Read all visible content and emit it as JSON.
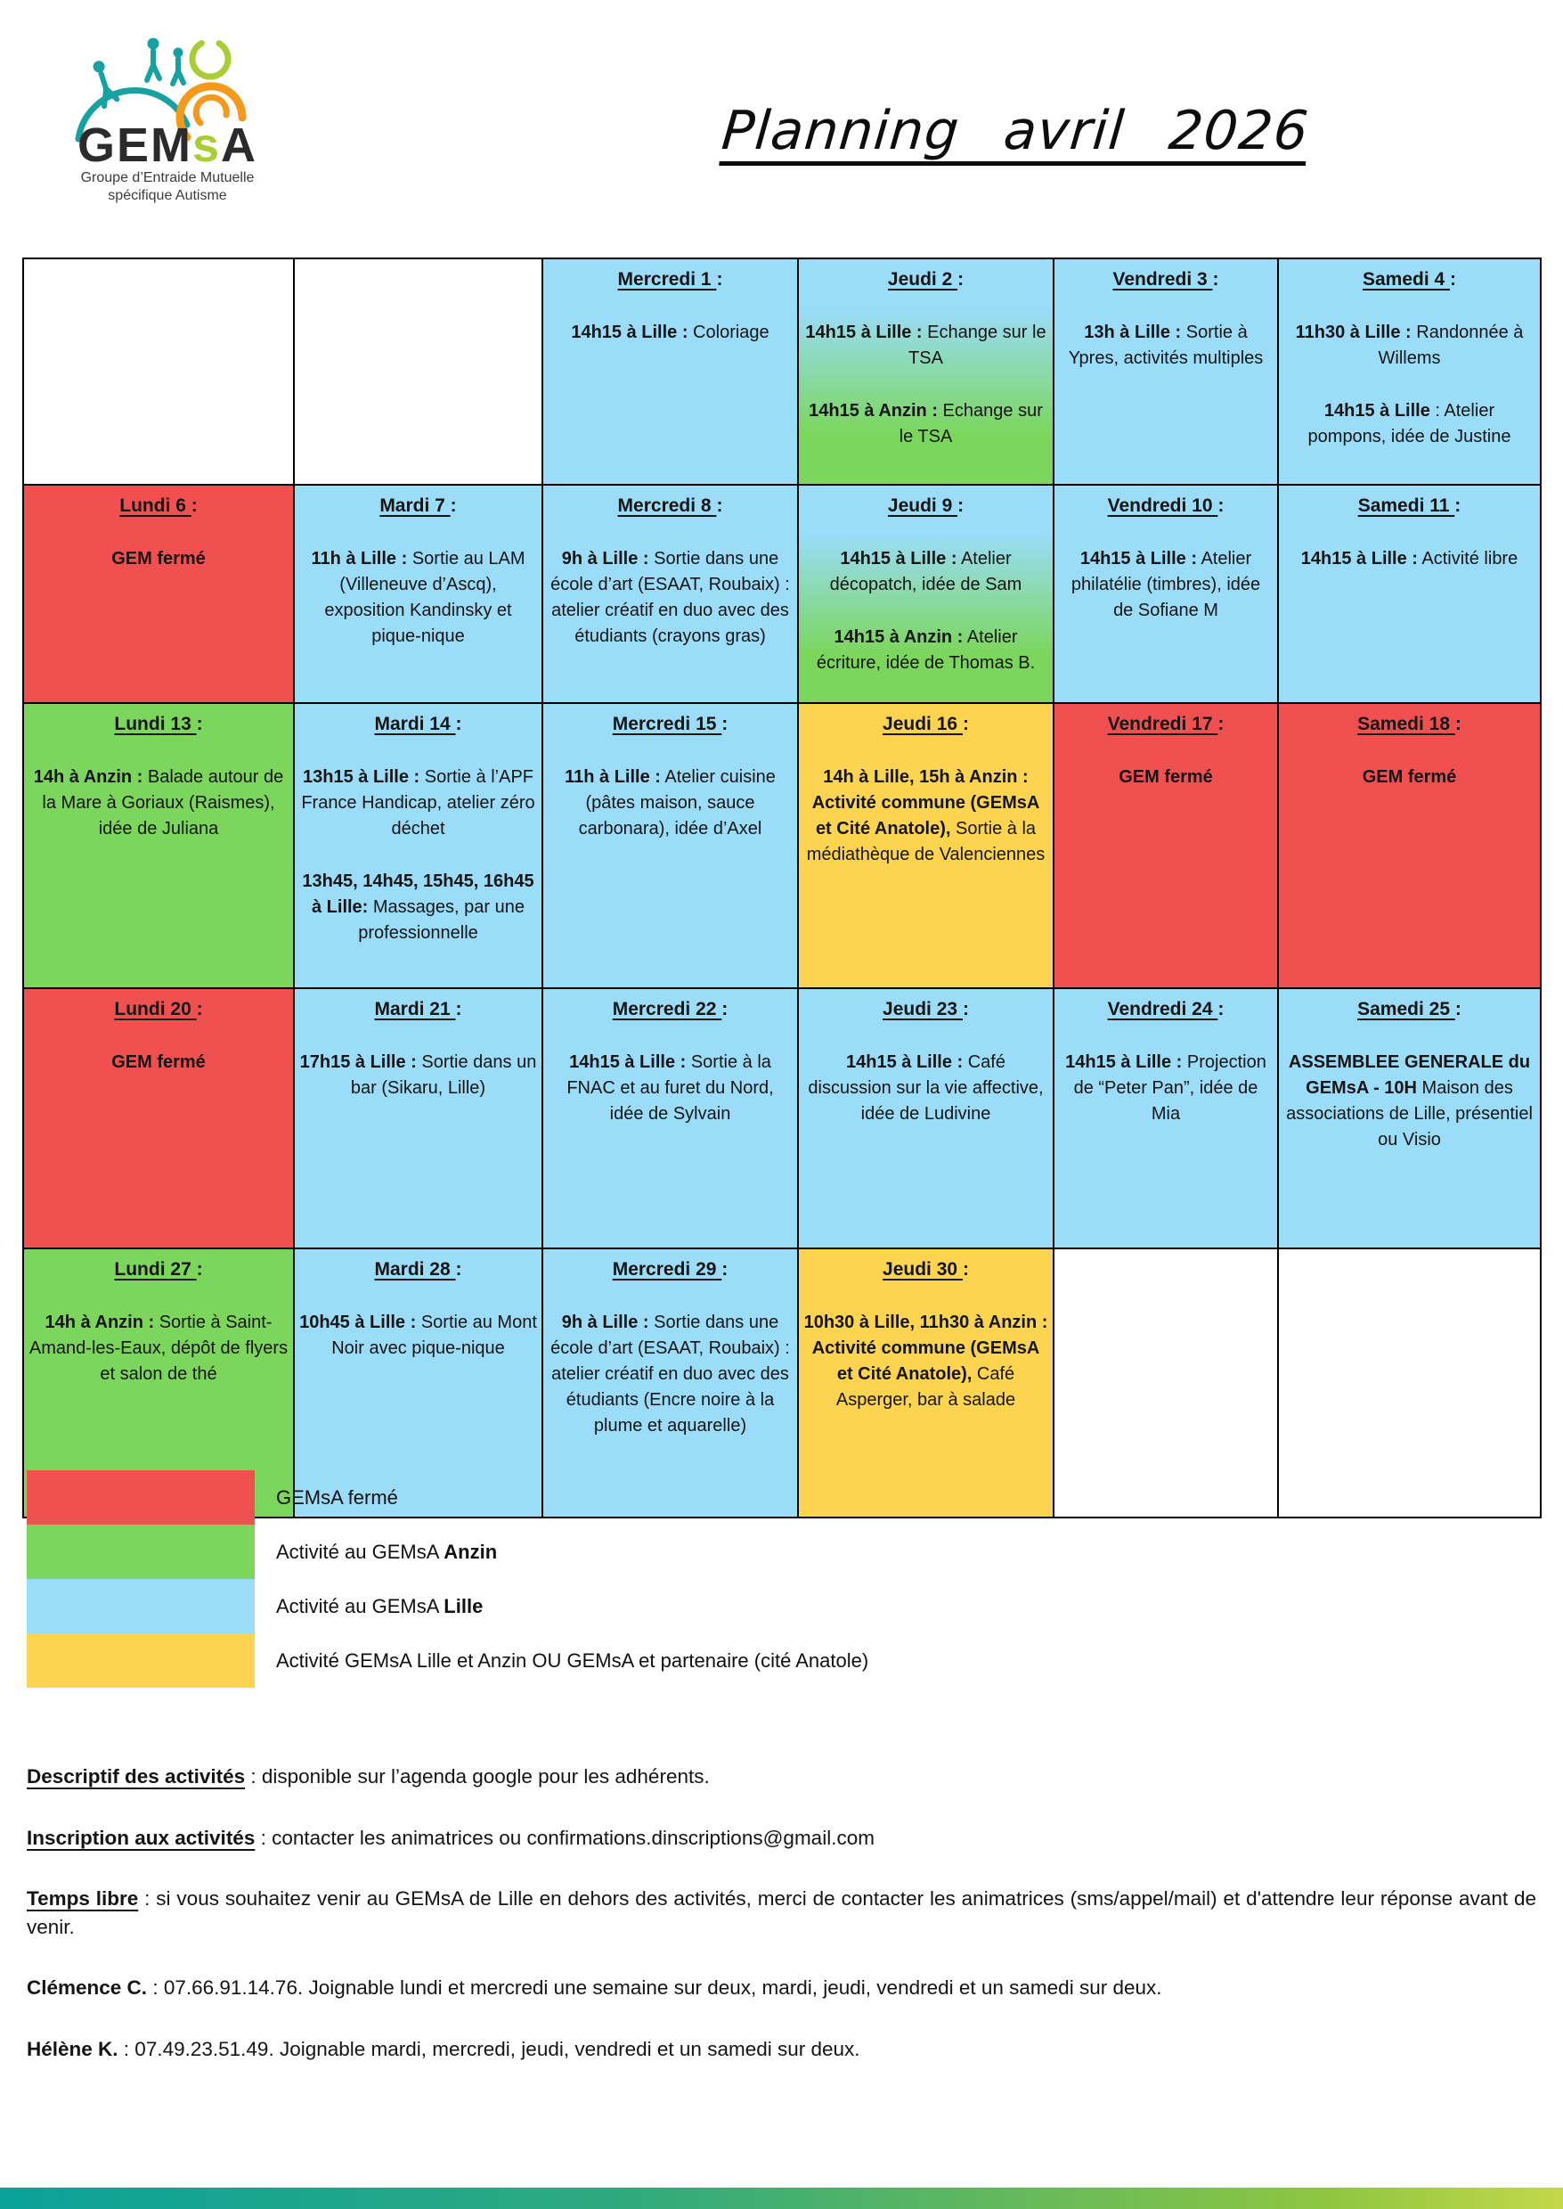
{
  "logo": {
    "acronym_gem": "GEM",
    "acronym_s": "s",
    "acronym_a": "A",
    "subtitle_line1": "Groupe d’Entraide Mutuelle",
    "subtitle_line2": "spécifique Autisme"
  },
  "header": {
    "title": "Planning avril 2026"
  },
  "colors": {
    "closed_red": "#f15050",
    "anzin_green": "#7cd65c",
    "lille_blue": "#9bdcf9",
    "joint_yellow": "#fcd44f",
    "logo_teal": "#18a1a1",
    "logo_green": "#a9cd35",
    "logo_orange": "#f39a1d",
    "bar_teal": "#0ba29a",
    "bar_green": "#8fc640"
  },
  "calendar": {
    "rows": [
      [
        {
          "day": "",
          "color": "white",
          "entries": []
        },
        {
          "day": "",
          "color": "white",
          "entries": []
        },
        {
          "day": "Mercredi 1",
          "color": "blue",
          "entries": [
            {
              "bold": "14h15 à Lille :",
              "text": " Coloriage"
            }
          ]
        },
        {
          "day": "Jeudi 2",
          "color": "gradient",
          "entries": [
            {
              "bold": "14h15 à Lille :",
              "text": " Echange sur le TSA"
            },
            {
              "bold": "14h15 à Anzin :",
              "text": " Echange sur le TSA"
            }
          ]
        },
        {
          "day": "Vendredi 3",
          "color": "blue",
          "entries": [
            {
              "bold": "13h à Lille :",
              "text": " Sortie à Ypres, activités multiples"
            }
          ]
        },
        {
          "day": "Samedi 4",
          "color": "blue",
          "entries": [
            {
              "bold": "11h30 à Lille :",
              "text": " Randonnée à Willems"
            },
            {
              "bold": "14h15 à Lille",
              "text": " : Atelier pompons, idée de Justine"
            }
          ]
        }
      ],
      [
        {
          "day": "Lundi 6",
          "color": "red",
          "entries": [
            {
              "bold": "GEM fermé",
              "text": ""
            }
          ]
        },
        {
          "day": "Mardi 7",
          "color": "blue",
          "entries": [
            {
              "bold": "11h à Lille :",
              "text": " Sortie au LAM (Villeneuve d’Ascq), exposition Kandinsky et pique-nique"
            }
          ]
        },
        {
          "day": "Mercredi 8",
          "color": "blue",
          "entries": [
            {
              "bold": "9h à Lille :",
              "text": " Sortie dans une école d’art (ESAAT, Roubaix) : atelier créatif en duo avec des étudiants (crayons gras)"
            }
          ]
        },
        {
          "day": "Jeudi 9",
          "color": "gradient",
          "entries": [
            {
              "bold": "14h15 à Lille :",
              "text": " Atelier décopatch, idée de Sam"
            },
            {
              "bold": "14h15 à Anzin :",
              "text": " Atelier écriture, idée de Thomas B."
            }
          ]
        },
        {
          "day": "Vendredi 10",
          "color": "blue",
          "entries": [
            {
              "bold": "14h15 à Lille :",
              "text": " Atelier philatélie (timbres), idée de Sofiane M"
            }
          ]
        },
        {
          "day": "Samedi 11",
          "color": "blue",
          "entries": [
            {
              "bold": "14h15 à Lille :",
              "text": " Activité libre"
            }
          ]
        }
      ],
      [
        {
          "day": "Lundi 13",
          "color": "green",
          "entries": [
            {
              "bold": "14h à Anzin :",
              "text": " Balade autour de la Mare à Goriaux (Raismes), idée de Juliana"
            }
          ]
        },
        {
          "day": "Mardi 14",
          "color": "blue",
          "entries": [
            {
              "bold": "13h15 à Lille :",
              "text": " Sortie à l’APF France Handicap, atelier zéro déchet"
            },
            {
              "bold": "13h45, 14h45, 15h45, 16h45 à Lille:",
              "text": " Massages, par une professionnelle"
            }
          ]
        },
        {
          "day": "Mercredi 15",
          "color": "blue",
          "entries": [
            {
              "bold": "11h à Lille :",
              "text": " Atelier cuisine (pâtes maison, sauce carbonara), idée d’Axel"
            }
          ]
        },
        {
          "day": "Jeudi 16",
          "color": "yellow",
          "entries": [
            {
              "bold": "14h à Lille, 15h à Anzin : Activité commune (GEMsA et Cité Anatole),",
              "text": " Sortie à la médiathèque de Valenciennes"
            }
          ]
        },
        {
          "day": "Vendredi 17",
          "color": "red",
          "entries": [
            {
              "bold": "GEM fermé",
              "text": ""
            }
          ]
        },
        {
          "day": "Samedi 18",
          "color": "red",
          "entries": [
            {
              "bold": "GEM fermé",
              "text": ""
            }
          ]
        }
      ],
      [
        {
          "day": "Lundi 20",
          "color": "red",
          "entries": [
            {
              "bold": "GEM fermé",
              "text": ""
            }
          ]
        },
        {
          "day": "Mardi 21",
          "color": "blue",
          "entries": [
            {
              "bold": "17h15 à Lille :",
              "text": " Sortie dans un bar (Sikaru, Lille)"
            }
          ]
        },
        {
          "day": "Mercredi 22",
          "color": "blue",
          "entries": [
            {
              "bold": "14h15 à Lille :",
              "text": " Sortie à la FNAC et au furet du Nord, idée de Sylvain"
            }
          ]
        },
        {
          "day": "Jeudi 23",
          "color": "blue",
          "entries": [
            {
              "bold": "14h15 à Lille :",
              "text": " Café discussion sur la vie affective, idée de Ludivine"
            }
          ]
        },
        {
          "day": "Vendredi 24",
          "color": "blue",
          "entries": [
            {
              "bold": "14h15 à Lille :",
              "text": " Projection de “Peter Pan”, idée de Mia"
            }
          ]
        },
        {
          "day": "Samedi 25",
          "color": "blue",
          "entries": [
            {
              "bold": "ASSEMBLEE GENERALE du GEMsA - 10H",
              "text": " Maison des associations de Lille, présentiel ou Visio"
            }
          ]
        }
      ],
      [
        {
          "day": "Lundi 27",
          "color": "green",
          "entries": [
            {
              "bold": "14h à Anzin :",
              "text": " Sortie à Saint-Amand-les-Eaux, dépôt de flyers et salon de thé"
            }
          ]
        },
        {
          "day": "Mardi 28",
          "color": "blue",
          "entries": [
            {
              "bold": "10h45 à Lille :",
              "text": " Sortie au Mont Noir avec pique-nique"
            }
          ]
        },
        {
          "day": "Mercredi 29",
          "color": "blue",
          "entries": [
            {
              "bold": "9h à Lille :",
              "text": " Sortie dans une école d’art (ESAAT, Roubaix) : atelier créatif en duo avec des étudiants (Encre noire à la plume et aquarelle)"
            }
          ]
        },
        {
          "day": "Jeudi 30",
          "color": "yellow",
          "entries": [
            {
              "bold": "10h30 à Lille, 11h30 à Anzin : Activité commune (GEMsA et Cité Anatole),",
              "text": " Café Asperger, bar à salade"
            }
          ]
        },
        {
          "day": "",
          "color": "white",
          "entries": []
        },
        {
          "day": "",
          "color": "white",
          "entries": []
        }
      ]
    ]
  },
  "legend": {
    "items": [
      {
        "color": "red",
        "pre": "GEMsA fermé",
        "bold": ""
      },
      {
        "color": "green",
        "pre": "Activité au GEMsA ",
        "bold": "Anzin"
      },
      {
        "color": "blue",
        "pre": "Activité au GEMsA ",
        "bold": "Lille"
      },
      {
        "color": "yellow",
        "pre": "Activité GEMsA Lille et Anzin OU GEMsA et partenaire (cité Anatole)",
        "bold": ""
      }
    ]
  },
  "footer": {
    "lines": [
      {
        "label": "Descriptif des activités",
        "underline": true,
        "justify": false,
        "body": " : disponible sur l’agenda google pour les adhérents."
      },
      {
        "label": "Inscription aux activités",
        "underline": true,
        "justify": false,
        "body": " : contacter les animatrices ou confirmations.dinscriptions@gmail.com"
      },
      {
        "label": "Temps libre",
        "underline": true,
        "justify": true,
        "body": " : si vous souhaitez venir au GEMsA de Lille en dehors des activités, merci de contacter les animatrices (sms/appel/mail) et d'attendre leur réponse avant de venir."
      },
      {
        "label": "Clémence C.",
        "underline": false,
        "justify": false,
        "body": " : 07.66.91.14.76. Joignable lundi et mercredi une semaine sur deux, mardi, jeudi, vendredi et un samedi sur deux."
      },
      {
        "label": "Hélène K.",
        "underline": false,
        "justify": false,
        "body": " : 07.49.23.51.49. Joignable mardi, mercredi, jeudi, vendredi et un samedi sur deux."
      }
    ]
  }
}
